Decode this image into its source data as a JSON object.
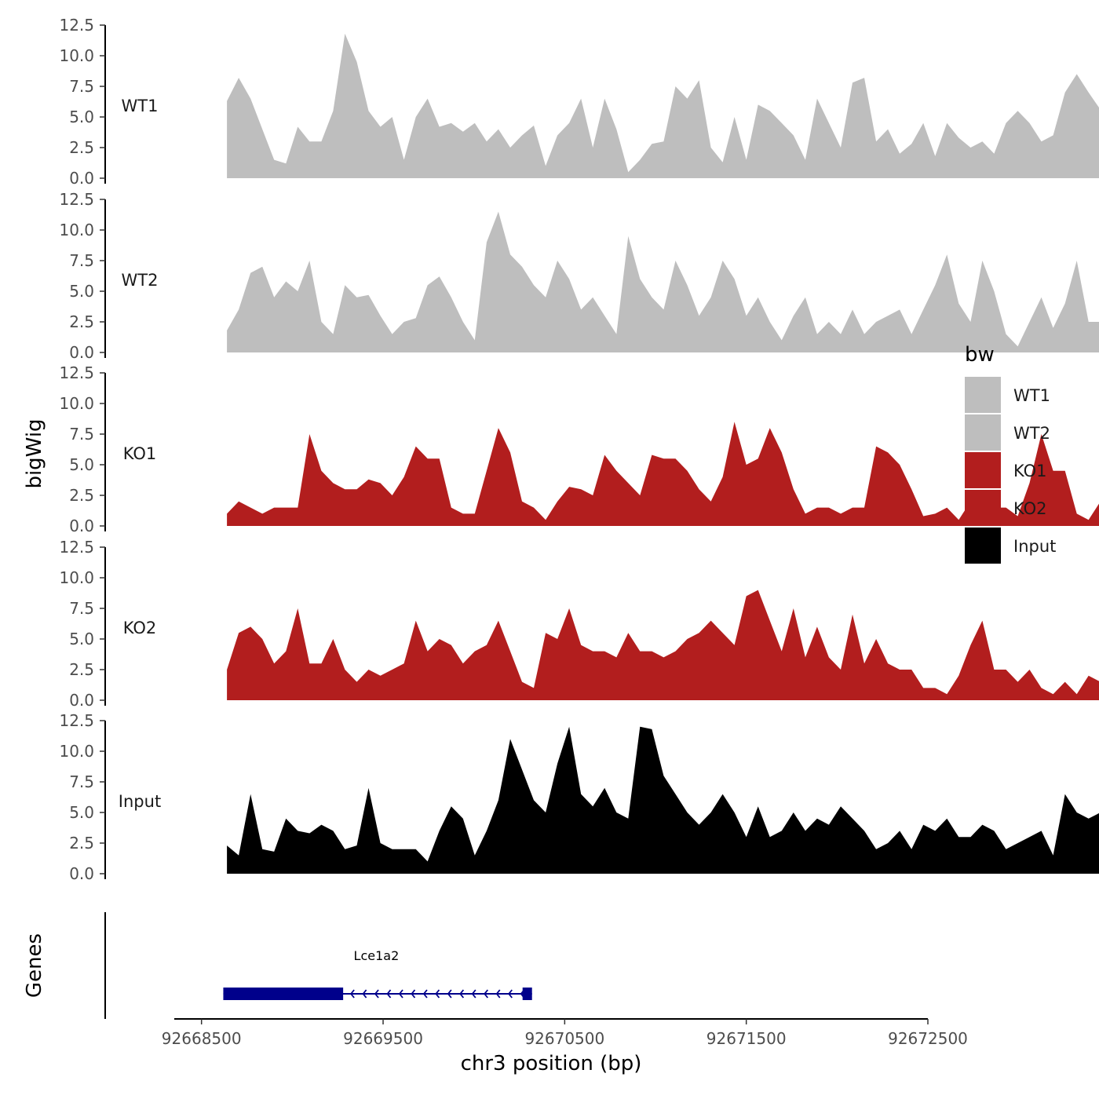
{
  "chart_data": {
    "type": "area",
    "title": "",
    "xlabel": "chr3 position (bp)",
    "ylabel": "bigWig",
    "genes_label": "Genes",
    "xlim": [
      92668350,
      92672500
    ],
    "xticks": [
      "92668500",
      "92669500",
      "92670500",
      "92671500",
      "92672500"
    ],
    "ylim": [
      0,
      12.5
    ],
    "yticks": [
      "0.0",
      "2.5",
      "5.0",
      "7.5",
      "10.0",
      "12.5"
    ],
    "legend": {
      "title": "bw",
      "items": [
        {
          "label": "WT1",
          "color": "#bebebe"
        },
        {
          "label": "WT2",
          "color": "#bebebe"
        },
        {
          "label": "KO1",
          "color": "#b21e1e"
        },
        {
          "label": "KO2",
          "color": "#b21e1e"
        },
        {
          "label": "Input",
          "color": "#000000"
        }
      ]
    },
    "x_start": 92668640,
    "x_step": 65,
    "series": [
      {
        "name": "WT1",
        "color": "#bebebe",
        "values": [
          6.3,
          8.2,
          6.5,
          4.0,
          1.5,
          1.2,
          4.2,
          3.0,
          3.0,
          5.5,
          11.8,
          9.5,
          5.5,
          4.2,
          5.0,
          1.5,
          5.0,
          6.5,
          4.2,
          4.5,
          3.8,
          4.5,
          3.0,
          4.0,
          2.5,
          3.5,
          4.3,
          1.0,
          3.5,
          4.5,
          6.5,
          2.5,
          6.5,
          4.0,
          0.5,
          1.5,
          2.8,
          3.0,
          7.5,
          6.5,
          8.0,
          2.5,
          1.3,
          5.0,
          1.5,
          6.0,
          5.5,
          4.5,
          3.5,
          1.5,
          6.5,
          4.5,
          2.5,
          7.8,
          8.2,
          3.0,
          4.0,
          2.0,
          2.8,
          4.5,
          1.8,
          4.5,
          3.3,
          2.5,
          3.0,
          2.0,
          4.5,
          5.5,
          4.5,
          3.0,
          3.5,
          7.0,
          8.5,
          7.0,
          5.6
        ]
      },
      {
        "name": "WT2",
        "color": "#bebebe",
        "values": [
          1.8,
          3.5,
          6.5,
          7.0,
          4.5,
          5.8,
          5.0,
          7.5,
          2.5,
          1.5,
          5.5,
          4.5,
          4.7,
          3.0,
          1.5,
          2.5,
          2.8,
          5.5,
          6.2,
          4.5,
          2.5,
          1.0,
          9.0,
          11.5,
          8.0,
          7.0,
          5.5,
          4.5,
          7.5,
          6.0,
          3.5,
          4.5,
          3.0,
          1.5,
          9.5,
          6.0,
          4.5,
          3.5,
          7.5,
          5.5,
          3.0,
          4.5,
          7.5,
          6.0,
          3.0,
          4.5,
          2.5,
          1.0,
          3.0,
          4.5,
          1.5,
          2.5,
          1.5,
          3.5,
          1.5,
          2.5,
          3.0,
          3.5,
          1.5,
          3.5,
          5.5,
          8.0,
          4.0,
          2.5,
          7.5,
          5.0,
          1.5,
          0.5,
          2.5,
          4.5,
          2.0,
          4.0,
          7.5,
          2.5,
          2.5
        ]
      },
      {
        "name": "KO1",
        "color": "#b21e1e",
        "values": [
          1.0,
          2.0,
          1.5,
          1.0,
          1.5,
          1.5,
          1.5,
          7.5,
          4.5,
          3.5,
          3.0,
          3.0,
          3.8,
          3.5,
          2.5,
          4.0,
          6.5,
          5.5,
          5.5,
          1.5,
          1.0,
          1.0,
          4.5,
          8.0,
          6.0,
          2.0,
          1.5,
          0.5,
          2.0,
          3.2,
          3.0,
          2.5,
          5.8,
          4.5,
          3.5,
          2.5,
          5.8,
          5.5,
          5.5,
          4.5,
          3.0,
          2.0,
          4.0,
          8.5,
          5.0,
          5.5,
          8.0,
          6.0,
          3.0,
          1.0,
          1.5,
          1.5,
          1.0,
          1.5,
          1.5,
          6.5,
          6.0,
          5.0,
          3.0,
          0.8,
          1.0,
          1.5,
          0.5,
          2.0,
          2.5,
          1.5,
          1.5,
          0.8,
          3.5,
          7.5,
          4.5,
          4.5,
          1.0,
          0.5,
          2.0
        ]
      },
      {
        "name": "KO2",
        "color": "#b21e1e",
        "values": [
          2.5,
          5.5,
          6.0,
          5.0,
          3.0,
          4.0,
          7.5,
          3.0,
          3.0,
          5.0,
          2.5,
          1.5,
          2.5,
          2.0,
          2.5,
          3.0,
          6.5,
          4.0,
          5.0,
          4.5,
          3.0,
          4.0,
          4.5,
          6.5,
          4.0,
          1.5,
          1.0,
          5.5,
          5.0,
          7.5,
          4.5,
          4.0,
          4.0,
          3.5,
          5.5,
          4.0,
          4.0,
          3.5,
          4.0,
          5.0,
          5.5,
          6.5,
          5.5,
          4.5,
          8.5,
          9.0,
          6.5,
          4.0,
          7.5,
          3.5,
          6.0,
          3.5,
          2.5,
          7.0,
          3.0,
          5.0,
          3.0,
          2.5,
          2.5,
          1.0,
          1.0,
          0.5,
          2.0,
          4.5,
          6.5,
          2.5,
          2.5,
          1.5,
          2.5,
          1.0,
          0.5,
          1.5,
          0.5,
          2.0,
          1.5
        ]
      },
      {
        "name": "Input",
        "color": "#000000",
        "values": [
          2.3,
          1.5,
          6.5,
          2.0,
          1.8,
          4.5,
          3.5,
          3.3,
          4.0,
          3.5,
          2.0,
          2.3,
          7.0,
          2.5,
          2.0,
          2.0,
          2.0,
          1.0,
          3.5,
          5.5,
          4.5,
          1.5,
          3.5,
          6.0,
          11.0,
          8.5,
          6.0,
          5.0,
          9.0,
          12.0,
          6.5,
          5.5,
          7.0,
          5.0,
          4.5,
          12.0,
          11.8,
          8.0,
          6.5,
          5.0,
          4.0,
          5.0,
          6.5,
          5.0,
          3.0,
          5.5,
          3.0,
          3.5,
          5.0,
          3.5,
          4.5,
          4.0,
          5.5,
          4.5,
          3.5,
          2.0,
          2.5,
          3.5,
          2.0,
          4.0,
          3.5,
          4.5,
          3.0,
          3.0,
          4.0,
          3.5,
          2.0,
          2.5,
          3.0,
          3.5,
          1.5,
          6.5,
          5.0,
          4.5,
          5.0
        ]
      }
    ],
    "gene": {
      "name": "Lce1a2",
      "start": 92668620,
      "end": 92670320,
      "thick_start": 92668620,
      "thick_end": 92669280,
      "strand": "-"
    }
  }
}
